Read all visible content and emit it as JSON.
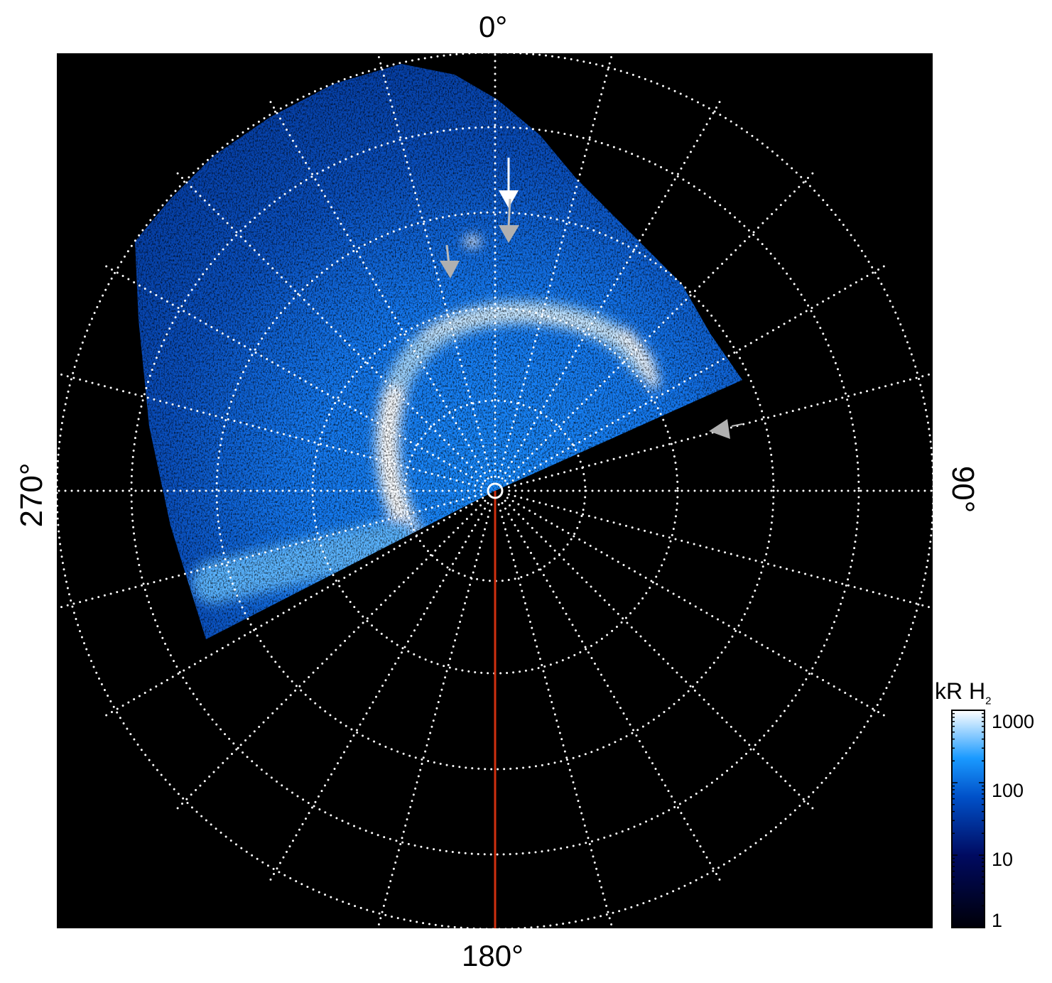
{
  "figure": {
    "projection": "polar",
    "background_color": "#000000",
    "grid": {
      "style": "dotted",
      "color": "#ffffff",
      "spokes_every_deg": 15,
      "rings": 5
    },
    "angle_labels": {
      "top": "0°",
      "right": "90°",
      "bottom": "180°",
      "left": "270°"
    },
    "reference_line": {
      "angle_label": "180°",
      "color": "#d03010"
    },
    "arrows": [
      {
        "color": "#ffffff",
        "direction": "down"
      },
      {
        "color": "#b0b0b0",
        "direction": "down"
      },
      {
        "color": "#b0b0b0",
        "direction": "down"
      },
      {
        "color": "#b0b0b0",
        "direction": "left"
      }
    ]
  },
  "colorbar": {
    "title": "kR H",
    "title_sub": "2",
    "scale": "log",
    "range": [
      1,
      1000
    ],
    "ticks": [
      "1000",
      "100",
      "10",
      "1"
    ],
    "colors": [
      "#000008",
      "#000a60",
      "#0050c8",
      "#1a9aff",
      "#ffffff"
    ]
  }
}
